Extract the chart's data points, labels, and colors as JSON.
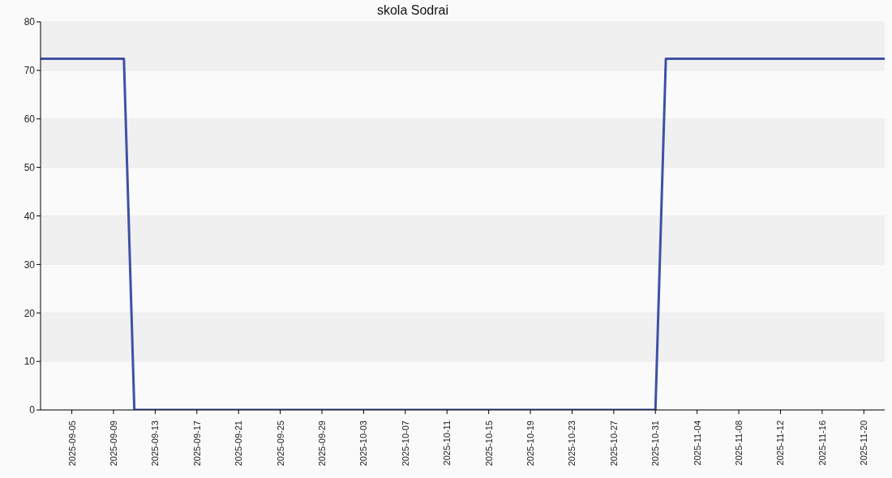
{
  "chart_data": {
    "type": "line",
    "title": "skola Sodrai",
    "x": [
      "2025-09-02",
      "2025-09-10",
      "2025-09-11",
      "2025-10-31",
      "2025-11-01",
      "2025-11-22"
    ],
    "values": [
      72.4,
      72.4,
      0,
      0,
      72.4,
      72.4
    ],
    "color": "#3f51a5",
    "xlim": [
      "2025-09-02",
      "2025-11-22"
    ],
    "xticks": [
      "2025-09-05",
      "2025-09-09",
      "2025-09-13",
      "2025-09-17",
      "2025-09-21",
      "2025-09-25",
      "2025-09-29",
      "2025-10-03",
      "2025-10-07",
      "2025-10-11",
      "2025-10-15",
      "2025-10-19",
      "2025-10-23",
      "2025-10-27",
      "2025-10-31",
      "2025-11-04",
      "2025-11-08",
      "2025-11-12",
      "2025-11-16",
      "2025-11-20"
    ],
    "ylim": [
      0,
      80
    ],
    "yticks": [
      0,
      10,
      20,
      30,
      40,
      50,
      60,
      70,
      80
    ],
    "grid": "y",
    "marker": "none",
    "line_style": "solid"
  }
}
